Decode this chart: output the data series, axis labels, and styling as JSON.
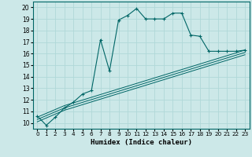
{
  "xlabel": "Humidex (Indice chaleur)",
  "background_color": "#cce8e8",
  "grid_color": "#b0d8d8",
  "line_color": "#006666",
  "xlim": [
    -0.5,
    23.5
  ],
  "ylim": [
    9.5,
    20.5
  ],
  "xticks": [
    0,
    1,
    2,
    3,
    4,
    5,
    6,
    7,
    8,
    9,
    10,
    11,
    12,
    13,
    14,
    15,
    16,
    17,
    18,
    19,
    20,
    21,
    22,
    23
  ],
  "yticks": [
    10,
    11,
    12,
    13,
    14,
    15,
    16,
    17,
    18,
    19,
    20
  ],
  "curve1_x": [
    0,
    1,
    2,
    3,
    4,
    5,
    6,
    7,
    8,
    9,
    10,
    11,
    12,
    13,
    14,
    15,
    16,
    17,
    18,
    19,
    20,
    21,
    22,
    23
  ],
  "curve1_y": [
    10.6,
    9.8,
    10.5,
    11.3,
    11.8,
    12.5,
    12.8,
    17.2,
    14.5,
    18.9,
    19.3,
    19.9,
    19.0,
    19.0,
    19.0,
    19.5,
    19.5,
    17.6,
    17.5,
    16.2,
    16.2,
    16.2,
    16.2,
    16.3
  ],
  "curve2_x": [
    0,
    3,
    23
  ],
  "curve2_y": [
    10.5,
    11.5,
    16.3
  ],
  "curve3_x": [
    0,
    3,
    23
  ],
  "curve3_y": [
    10.3,
    11.3,
    16.1
  ],
  "curve4_x": [
    0,
    3,
    23
  ],
  "curve4_y": [
    10.1,
    11.1,
    15.9
  ]
}
